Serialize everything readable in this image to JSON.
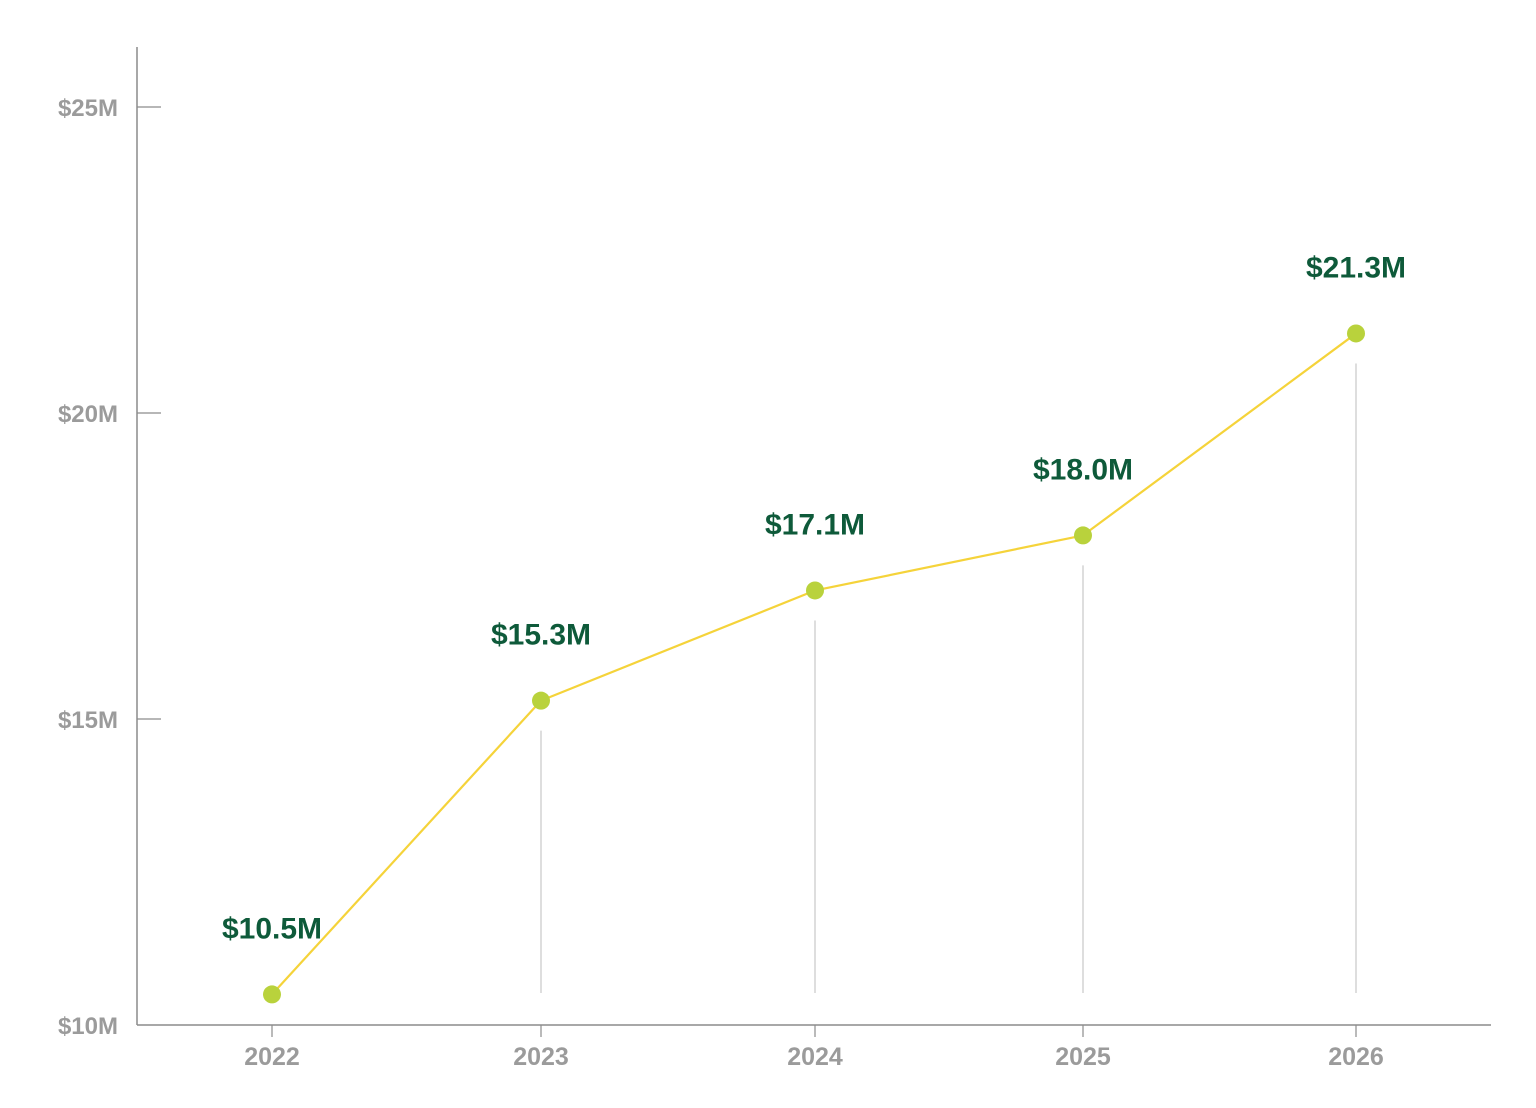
{
  "chart_data": {
    "type": "line",
    "title": "",
    "xlabel": "",
    "ylabel": "",
    "categories": [
      "2022",
      "2023",
      "2024",
      "2025",
      "2026"
    ],
    "series": [
      {
        "values": [
          10.5,
          15.3,
          17.1,
          18.0,
          21.3
        ]
      }
    ],
    "data_labels": [
      "$10.5M",
      "$15.3M",
      "$17.1M",
      "$18.0M",
      "$21.3M"
    ],
    "ylim": [
      10,
      25
    ],
    "yticks": [
      10,
      15,
      20,
      25
    ],
    "ytick_labels": [
      "$10M",
      "$15M",
      "$20M",
      "$25M"
    ],
    "grid": false,
    "legend": "none",
    "colors": {
      "line": "#f5d33a",
      "marker": "#b9d23c",
      "data_label": "#0e5a3a",
      "tick_label": "#9b9b9b",
      "axis": "#8c8c8c",
      "drop_line": "#c8c8c8"
    }
  }
}
